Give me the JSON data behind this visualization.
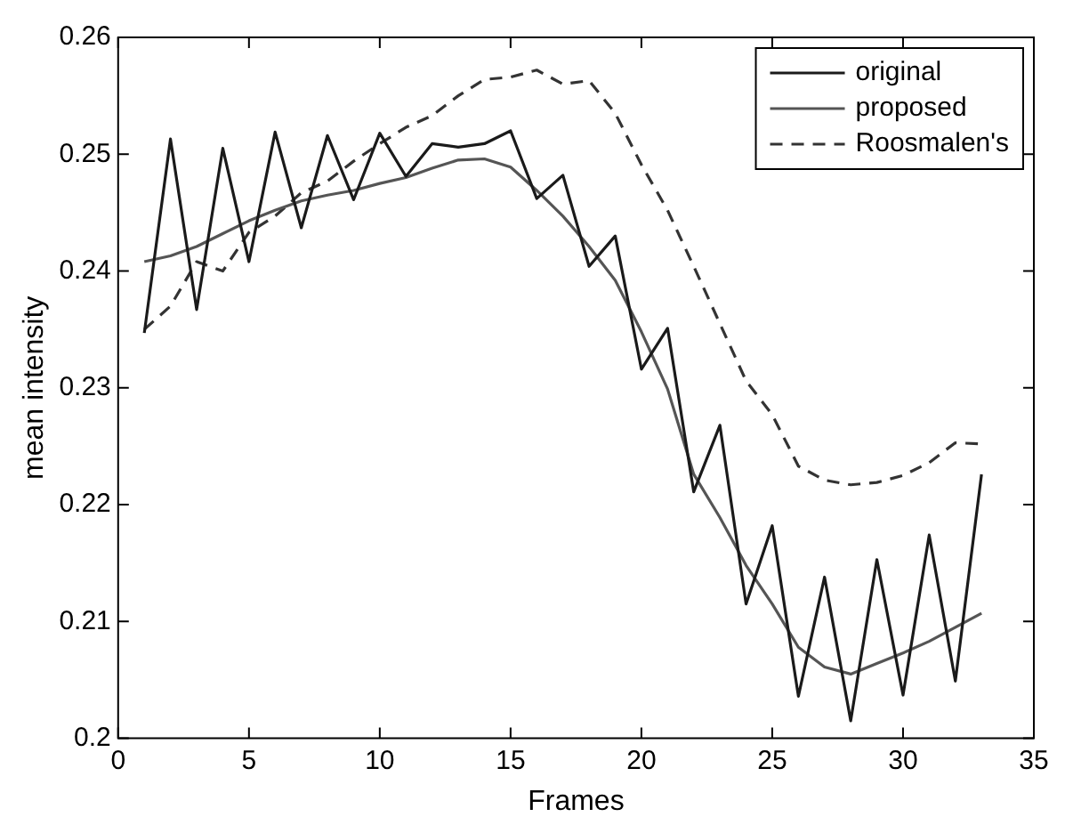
{
  "chart_data": {
    "type": "line",
    "xlabel": "Frames",
    "ylabel": "mean intensity",
    "x": [
      1,
      2,
      3,
      4,
      5,
      6,
      7,
      8,
      9,
      10,
      11,
      12,
      13,
      14,
      15,
      16,
      17,
      18,
      19,
      20,
      21,
      22,
      23,
      24,
      25,
      26,
      27,
      28,
      29,
      30,
      31,
      32,
      33
    ],
    "series": [
      {
        "name": "original",
        "color": "#1a1a1a",
        "line_style": "solid",
        "values": [
          0.2347,
          0.2513,
          0.2367,
          0.2505,
          0.2408,
          0.2519,
          0.2437,
          0.2516,
          0.2461,
          0.2518,
          0.2481,
          0.2509,
          0.2506,
          0.2509,
          0.252,
          0.2462,
          0.2482,
          0.2404,
          0.243,
          0.2316,
          0.2351,
          0.2211,
          0.2268,
          0.2115,
          0.2182,
          0.2036,
          0.2138,
          0.2015,
          0.2153,
          0.2037,
          0.2174,
          0.2049,
          0.2226
        ]
      },
      {
        "name": "proposed",
        "color": "#555555",
        "line_style": "solid",
        "values": [
          0.2408,
          0.2413,
          0.2421,
          0.2432,
          0.2443,
          0.2452,
          0.246,
          0.2465,
          0.2469,
          0.2475,
          0.248,
          0.2488,
          0.2495,
          0.2496,
          0.2489,
          0.2469,
          0.2447,
          0.2421,
          0.2392,
          0.2348,
          0.2299,
          0.2226,
          0.2189,
          0.2148,
          0.2115,
          0.2078,
          0.2061,
          0.2055,
          0.2064,
          0.2073,
          0.2083,
          0.2095,
          0.2107
        ]
      },
      {
        "name": "Roosmalen's",
        "color": "#333333",
        "line_style": "dashed",
        "values": [
          0.235,
          0.237,
          0.2408,
          0.24,
          0.2433,
          0.2447,
          0.2467,
          0.2477,
          0.2494,
          0.2509,
          0.2523,
          0.2533,
          0.255,
          0.2564,
          0.2566,
          0.2572,
          0.256,
          0.2563,
          0.2535,
          0.2491,
          0.2452,
          0.2404,
          0.2355,
          0.2306,
          0.2277,
          0.2233,
          0.2221,
          0.2217,
          0.2219,
          0.2225,
          0.2236,
          0.2253,
          0.2252
        ]
      }
    ],
    "xlim": [
      0,
      35
    ],
    "xticks": [
      0,
      5,
      10,
      15,
      20,
      25,
      30,
      35
    ],
    "ylim": [
      0.2,
      0.26
    ],
    "yticks": [
      0.2,
      0.21,
      0.22,
      0.23,
      0.24,
      0.25,
      0.26
    ],
    "grid": false,
    "legend": "top right",
    "marker": "none"
  }
}
